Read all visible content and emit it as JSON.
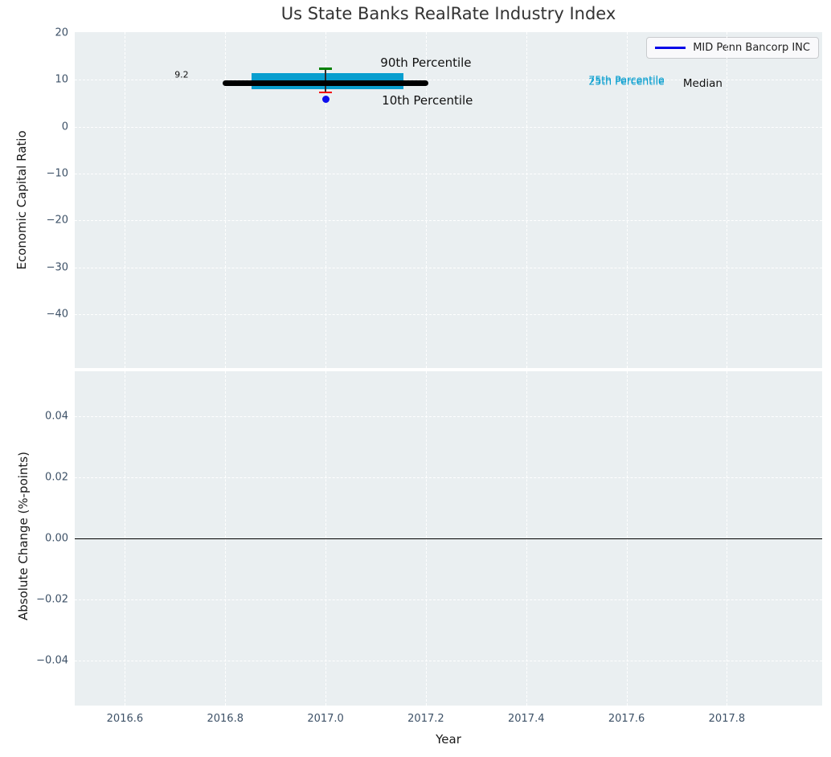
{
  "figure": {
    "title": "Us State Banks RealRate Industry Index",
    "background": "#ffffff"
  },
  "legend": {
    "label": "MID Penn Bancorp INC",
    "line_color": "#0202e8"
  },
  "style": {
    "plot_bg": "#eaeff1",
    "grid_color": "#ffffff",
    "tick_color": "#3d5167",
    "text_color": "#1a1a1a",
    "box_color": "#089ecf",
    "median_color": "#000000",
    "p90_color": "#008000",
    "p10_color": "#f40000",
    "company_color": "#0f0fee"
  },
  "chart_data": [
    {
      "type": "boxplot",
      "title": "Us State Banks RealRate Industry Index",
      "ylabel": "Economic Capital Ratio",
      "xlabel": "",
      "xlim": [
        2016.5,
        2017.99
      ],
      "ylim": [
        -51.4,
        20.1
      ],
      "grid": true,
      "legend_position": "upper right",
      "xticks": {
        "values": [
          2016.6,
          2016.8,
          2017.0,
          2017.2,
          2017.4,
          2017.6,
          2017.8
        ],
        "labels": []
      },
      "yticks": {
        "values": [
          20,
          10,
          0,
          -10,
          -20,
          -30,
          -40
        ],
        "labels": [
          "20",
          "10",
          "0",
          "−10",
          "−20",
          "−30",
          "−40"
        ]
      },
      "box": {
        "x": 2017.0,
        "median": 9.2,
        "q1": 7.9,
        "q3": 11.4,
        "p10": 7.3,
        "p90": 12.3,
        "box_x_span": [
          2016.853,
          2017.155
        ],
        "median_x_span": [
          2016.8,
          2017.2
        ],
        "cap_half_width_years": 0.013
      },
      "company_point": {
        "label": "MID Penn Bancorp INC",
        "x": 2017.0,
        "y": 5.8
      },
      "annotations": [
        {
          "text": "9.2",
          "x": 2016.713,
          "y": 11.0,
          "color": "#111111",
          "size": 11
        },
        {
          "text": "90th Percentile",
          "x": 2017.2,
          "y": 13.6,
          "color": "#111111",
          "size": 15
        },
        {
          "text": "10th Percentile",
          "x": 2017.203,
          "y": 5.6,
          "color": "#111111",
          "size": 15
        },
        {
          "text": "75th Percentile",
          "x": 2017.6,
          "y": 9.95,
          "color": "#089ecf",
          "size": 12.5
        },
        {
          "text": "25th Percentile",
          "x": 2017.6,
          "y": 9.6,
          "color": "#089ecf",
          "size": 12.5
        },
        {
          "text": "Median",
          "x": 2017.752,
          "y": 9.2,
          "color": "#111111",
          "size": 13.5
        }
      ]
    },
    {
      "type": "line",
      "ylabel": "Absolute Change (%-points)",
      "xlabel": "Year",
      "xlim": [
        2016.5,
        2017.99
      ],
      "ylim": [
        -0.0547,
        0.0547
      ],
      "grid": true,
      "xticks": {
        "values": [
          2016.6,
          2016.8,
          2017.0,
          2017.2,
          2017.4,
          2017.6,
          2017.8
        ],
        "labels": [
          "2016.6",
          "2016.8",
          "2017.0",
          "2017.2",
          "2017.4",
          "2017.6",
          "2017.8"
        ]
      },
      "yticks": {
        "values": [
          0.04,
          0.02,
          0.0,
          -0.02,
          -0.04
        ],
        "labels": [
          "0.04",
          "0.02",
          "0.00",
          "−0.02",
          "−0.04"
        ]
      },
      "zero_line": {
        "y": 0.0,
        "color": "#000000"
      },
      "series": []
    }
  ]
}
